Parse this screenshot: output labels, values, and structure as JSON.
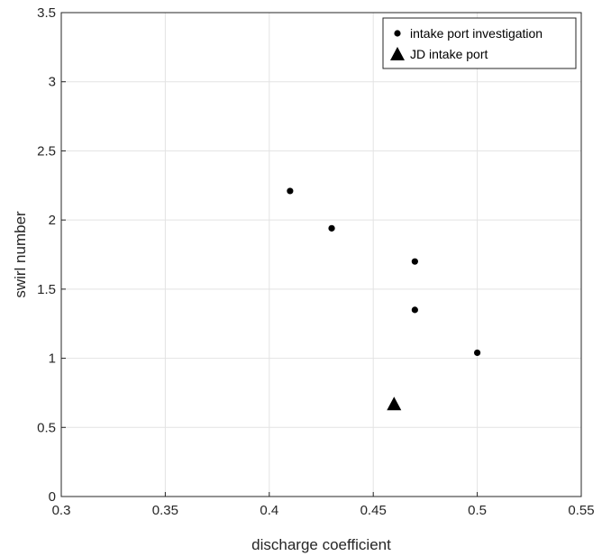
{
  "chart_data": {
    "type": "scatter",
    "xlabel": "discharge coefficient",
    "ylabel": "swirl number",
    "xlim": [
      0.3,
      0.55
    ],
    "ylim": [
      0,
      3.5
    ],
    "xticks": [
      "0.3",
      "0.35",
      "0.4",
      "0.45",
      "0.5",
      "0.55"
    ],
    "yticks": [
      "0",
      "0.5",
      "1",
      "1.5",
      "2",
      "2.5",
      "3",
      "3.5"
    ],
    "grid": true,
    "legend_position": "top-right",
    "series": [
      {
        "name": "intake port investigation",
        "marker": "dot",
        "color": "#000000",
        "points": [
          {
            "x": 0.41,
            "y": 2.21
          },
          {
            "x": 0.43,
            "y": 1.94
          },
          {
            "x": 0.47,
            "y": 1.7
          },
          {
            "x": 0.47,
            "y": 1.35
          },
          {
            "x": 0.5,
            "y": 1.04
          }
        ]
      },
      {
        "name": "JD intake port",
        "marker": "triangle",
        "color": "#000000",
        "points": [
          {
            "x": 0.46,
            "y": 0.67
          }
        ]
      }
    ]
  }
}
